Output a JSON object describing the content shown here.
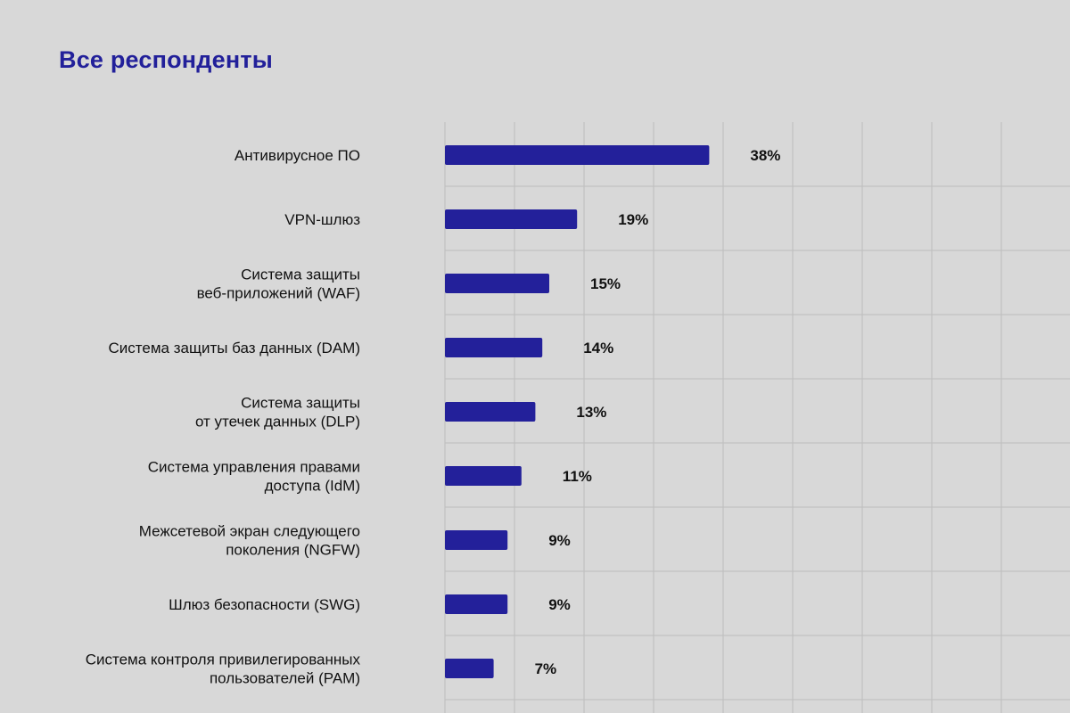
{
  "chart_data": {
    "type": "bar",
    "orientation": "horizontal",
    "title": "Все респонденты",
    "categories": [
      "Антивирусное ПО",
      "VPN-шлюз",
      "Система защиты\nвеб-приложений (WAF)",
      "Система защиты баз данных (DAM)",
      "Система защиты\nот утечек данных (DLP)",
      "Система управления правами\nдоступа (IdM)",
      "Межсетевой экран следующего\nпоколения (NGFW)",
      "Шлюз безопасности (SWG)",
      "Система контроля привилегированных\nпользователей (PAM)"
    ],
    "values": [
      38,
      19,
      15,
      14,
      13,
      11,
      9,
      9,
      7
    ],
    "value_labels": [
      "38%",
      "19%",
      "15%",
      "14%",
      "13%",
      "11%",
      "9%",
      "9%",
      "7%"
    ],
    "grid": true,
    "bar_color": "#23209a",
    "title_color": "#22209a"
  }
}
